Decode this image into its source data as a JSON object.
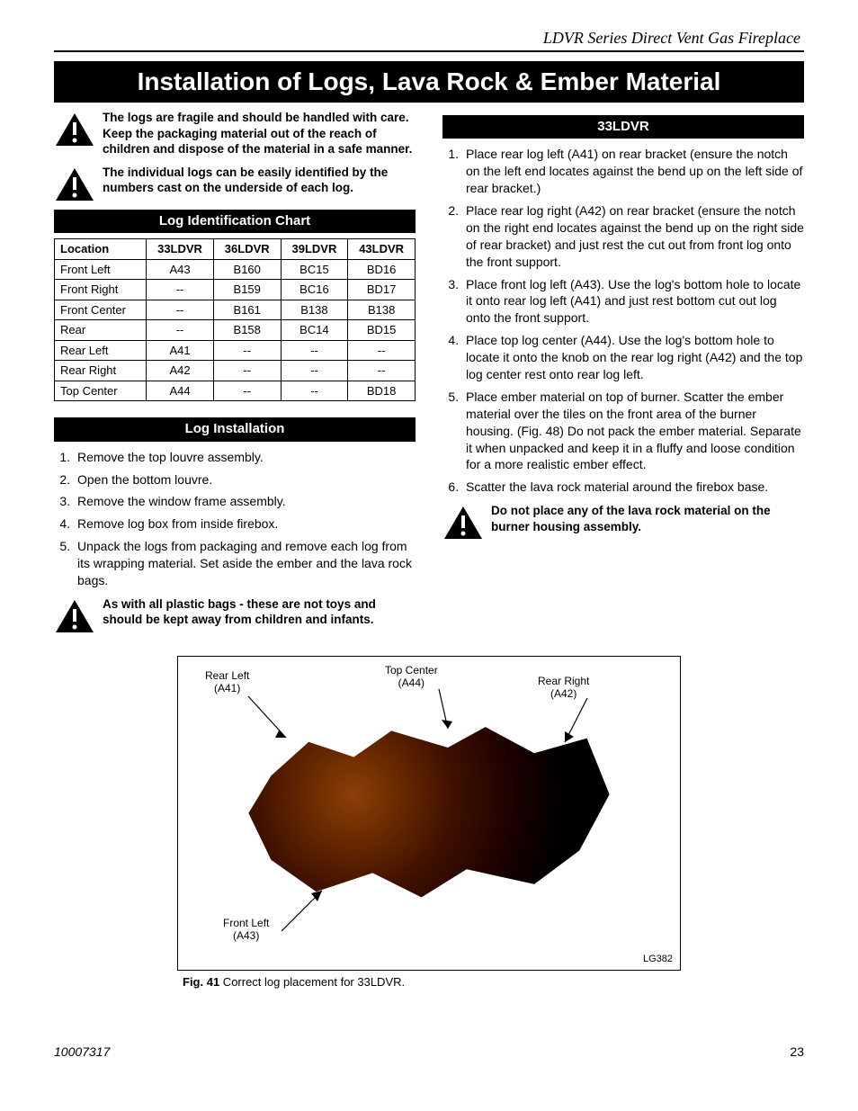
{
  "header": {
    "product_line": "LDVR Series Direct Vent Gas Fireplace"
  },
  "main_title": "Installation of Logs, Lava Rock & Ember Material",
  "warnings": {
    "fragile": "The logs are fragile and should be handled with care. Keep the packaging material out of the reach of children and dispose of the material in a safe manner.",
    "identify": "The individual logs can be easily identified by the numbers cast on the underside of each log.",
    "plastic": "As with all plastic bags - these are not toys and should be kept away from children and infants.",
    "lava": "Do not place any of the lava rock material on the burner housing assembly."
  },
  "log_chart": {
    "title": "Log Identification Chart",
    "columns": [
      "Location",
      "33LDVR",
      "36LDVR",
      "39LDVR",
      "43LDVR"
    ],
    "rows": [
      [
        "Front Left",
        "A43",
        "B160",
        "BC15",
        "BD16"
      ],
      [
        "Front Right",
        "--",
        "B159",
        "BC16",
        "BD17"
      ],
      [
        "Front Center",
        "--",
        "B161",
        "B138",
        "B138"
      ],
      [
        "Rear",
        "--",
        "B158",
        "BC14",
        "BD15"
      ],
      [
        "Rear Left",
        "A41",
        "--",
        "--",
        "--"
      ],
      [
        "Rear Right",
        "A42",
        "--",
        "--",
        "--"
      ],
      [
        "Top Center",
        "A44",
        "--",
        "--",
        "BD18"
      ]
    ]
  },
  "log_install": {
    "title": "Log Installation",
    "steps": [
      "Remove the top louvre assembly.",
      "Open the bottom louvre.",
      "Remove the window frame assembly.",
      "Remove log box from inside firebox.",
      "Unpack the logs from packaging and remove each log from its wrapping material. Set aside the ember and the lava rock bags."
    ]
  },
  "model_33": {
    "title": "33LDVR",
    "steps": [
      "Place rear log left (A41) on rear bracket (ensure the notch on the left end locates against the bend up on the left side of rear bracket.)",
      "Place rear log right (A42) on rear bracket (ensure the notch on the right end locates against the bend up on the right side of rear bracket) and just rest the cut out from front log onto the front support.",
      "Place front log left (A43). Use the log's bottom hole to locate it onto rear log left (A41) and just rest bottom cut out log onto the front support.",
      "Place top log center (A44). Use the log's bottom hole to locate it onto the knob on the rear log right (A42) and the top log center rest onto rear log left.",
      "Place ember material on top of burner. Scatter the ember material over the tiles on the front area of the burner housing. (Fig. 48) Do not pack the ember material. Separate it when unpacked and keep it in a fluffy and loose condition for a more realistic ember effect.",
      "Scatter the lava rock material around the firebox base."
    ]
  },
  "figure": {
    "labels": {
      "rear_left": "Rear Left\n(A41)",
      "top_center": "Top Center\n(A44)",
      "rear_right": "Rear Right\n(A42)",
      "front_left": "Front Left\n(A43)"
    },
    "code": "LG382",
    "caption_bold": "Fig. 41",
    "caption_rest": "  Correct log placement for 33LDVR."
  },
  "footer": {
    "doc_number": "10007317",
    "page": "23"
  },
  "colors": {
    "banner_bg": "#000000",
    "banner_fg": "#ffffff",
    "text": "#000000",
    "page_bg": "#ffffff",
    "rule": "#000000"
  }
}
